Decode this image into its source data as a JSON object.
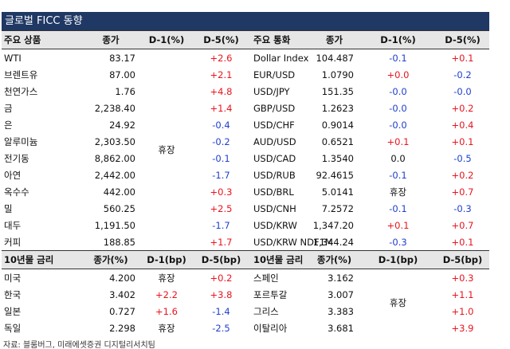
{
  "title": "글로벌 FICC 동향",
  "top": {
    "headers": [
      "주요 상품",
      "종가",
      "D-1(%)",
      "D-5(%)",
      "주요 통화",
      "종가",
      "D-1(%)",
      "D-5(%)"
    ],
    "commodities": [
      [
        "WTI",
        "83.17",
        "+2.6"
      ],
      [
        "브렌트유",
        "87.00",
        "+2.1"
      ],
      [
        "천연가스",
        "1.76",
        "+4.8"
      ],
      [
        "금",
        "2,238.40",
        "+1.4"
      ],
      [
        "은",
        "24.92",
        "-0.4"
      ],
      [
        "알루미늄",
        "2,303.50",
        "-0.2"
      ],
      [
        "전기동",
        "8,862.00",
        "-0.1"
      ],
      [
        "아연",
        "2,442.00",
        "-1.7"
      ],
      [
        "옥수수",
        "442.00",
        "+0.3"
      ],
      [
        "밀",
        "560.25",
        "+2.5"
      ],
      [
        "대두",
        "1,191.50",
        "-1.7"
      ],
      [
        "커피",
        "188.85",
        "+1.7"
      ]
    ],
    "commodities_d1": "휴장",
    "currencies": [
      [
        "Dollar Index",
        "104.487",
        "-0.1",
        "+0.1"
      ],
      [
        "EUR/USD",
        "1.0790",
        "+0.0",
        "-0.2"
      ],
      [
        "USD/JPY",
        "151.35",
        "-0.0",
        "-0.0"
      ],
      [
        "GBP/USD",
        "1.2623",
        "-0.0",
        "+0.2"
      ],
      [
        "USD/CHF",
        "0.9014",
        "-0.0",
        "+0.4"
      ],
      [
        "AUD/USD",
        "0.6521",
        "+0.1",
        "+0.1"
      ],
      [
        "USD/CAD",
        "1.3540",
        "0.0",
        "-0.5"
      ],
      [
        "USD/RUB",
        "92.4615",
        "-0.1",
        "+0.2"
      ],
      [
        "USD/BRL",
        "5.0141",
        "휴장",
        "+0.7"
      ],
      [
        "USD/CNH",
        "7.2572",
        "-0.1",
        "-0.3"
      ],
      [
        "USD/KRW",
        "1,347.20",
        "+0.1",
        "+0.7"
      ],
      [
        "USD/KRW NDF1M",
        "1,344.24",
        "-0.3",
        "+0.1"
      ]
    ]
  },
  "bottom": {
    "headers": [
      "10년물 금리",
      "종가(%)",
      "D-1(bp)",
      "D-5(bp)",
      "10년물 금리",
      "종가(%)",
      "D-1(bp)",
      "D-5(bp)"
    ],
    "rates": [
      [
        "미국",
        "4.200",
        "휴장",
        "+0.2"
      ],
      [
        "한국",
        "3.402",
        "+2.2",
        "+3.8"
      ],
      [
        "일본",
        "0.727",
        "+1.6",
        "-1.4"
      ],
      [
        "독일",
        "2.298",
        "휴장",
        "-2.5"
      ]
    ],
    "rates2": [
      [
        "스페인",
        "3.162",
        "+0.3"
      ],
      [
        "포르투갈",
        "3.007",
        "+1.1"
      ],
      [
        "그리스",
        "3.383",
        "+1.0"
      ],
      [
        "이탈리아",
        "3.681",
        "+3.9"
      ]
    ],
    "rates2_d1": "휴장"
  },
  "source": "자료: 블룸버그, 미래에셋증권 디지털리서치팀"
}
